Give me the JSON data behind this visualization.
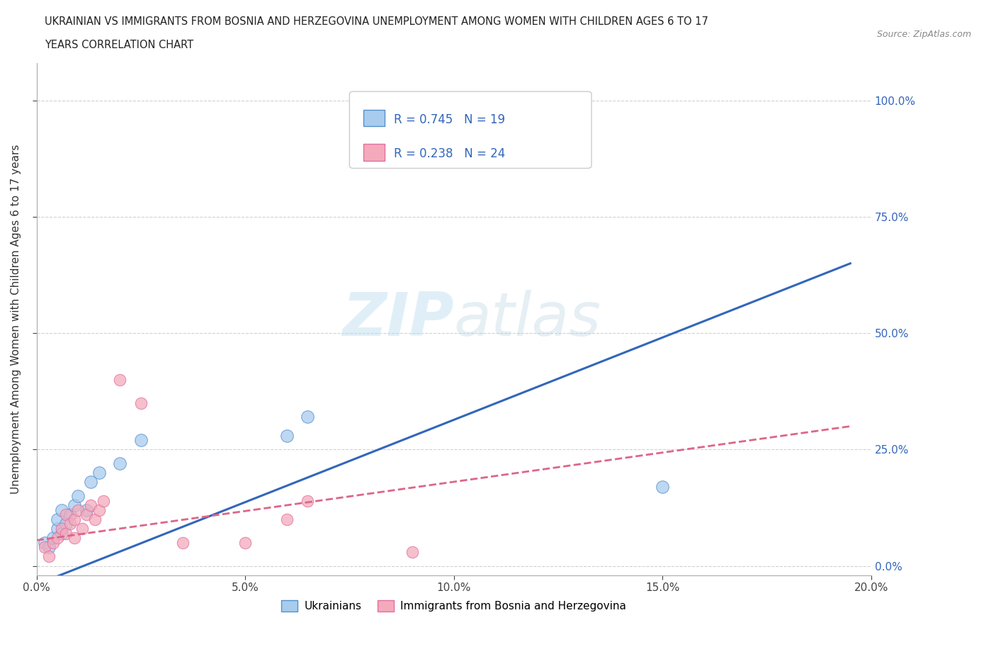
{
  "title_line1": "UKRAINIAN VS IMMIGRANTS FROM BOSNIA AND HERZEGOVINA UNEMPLOYMENT AMONG WOMEN WITH CHILDREN AGES 6 TO 17",
  "title_line2": "YEARS CORRELATION CHART",
  "source_text": "Source: ZipAtlas.com",
  "ylabel": "Unemployment Among Women with Children Ages 6 to 17 years",
  "xlabel_ticks": [
    "0.0%",
    "5.0%",
    "10.0%",
    "15.0%",
    "20.0%"
  ],
  "ytick_labels": [
    "0.0%",
    "25.0%",
    "50.0%",
    "75.0%",
    "100.0%"
  ],
  "xlim": [
    0.0,
    0.2
  ],
  "ylim": [
    -0.02,
    1.08
  ],
  "legend_R1": "R = 0.745",
  "legend_N1": "N = 19",
  "legend_R2": "R = 0.238",
  "legend_N2": "N = 24",
  "legend_label1": "Ukrainians",
  "legend_label2": "Immigrants from Bosnia and Herzegovina",
  "blue_color": "#A8CCEE",
  "pink_color": "#F4AABB",
  "blue_edge_color": "#5590CC",
  "pink_edge_color": "#E070A0",
  "blue_line_color": "#3366BB",
  "pink_line_color": "#DD6688",
  "text_color": "#3366BB",
  "watermark_color": "#DDEEFF",
  "ukrainians_x": [
    0.002,
    0.003,
    0.004,
    0.005,
    0.005,
    0.006,
    0.006,
    0.007,
    0.008,
    0.009,
    0.01,
    0.012,
    0.013,
    0.015,
    0.02,
    0.025,
    0.06,
    0.065,
    0.15
  ],
  "ukrainians_y": [
    0.05,
    0.04,
    0.06,
    0.08,
    0.1,
    0.07,
    0.12,
    0.09,
    0.11,
    0.13,
    0.15,
    0.12,
    0.18,
    0.2,
    0.22,
    0.27,
    0.28,
    0.32,
    0.17
  ],
  "ukraine_trend_x0": 0.0,
  "ukraine_trend_y0": -0.04,
  "ukraine_trend_x1": 0.195,
  "ukraine_trend_y1": 0.65,
  "bosnia_x": [
    0.002,
    0.003,
    0.004,
    0.005,
    0.006,
    0.007,
    0.007,
    0.008,
    0.009,
    0.009,
    0.01,
    0.011,
    0.012,
    0.013,
    0.014,
    0.015,
    0.016,
    0.02,
    0.025,
    0.035,
    0.05,
    0.06,
    0.065,
    0.09
  ],
  "bosnia_y": [
    0.04,
    0.02,
    0.05,
    0.06,
    0.08,
    0.07,
    0.11,
    0.09,
    0.06,
    0.1,
    0.12,
    0.08,
    0.11,
    0.13,
    0.1,
    0.12,
    0.14,
    0.4,
    0.35,
    0.05,
    0.05,
    0.1,
    0.14,
    0.03
  ],
  "bosnia_trend_x0": 0.0,
  "bosnia_trend_y0": 0.055,
  "bosnia_trend_x1": 0.195,
  "bosnia_trend_y1": 0.3
}
